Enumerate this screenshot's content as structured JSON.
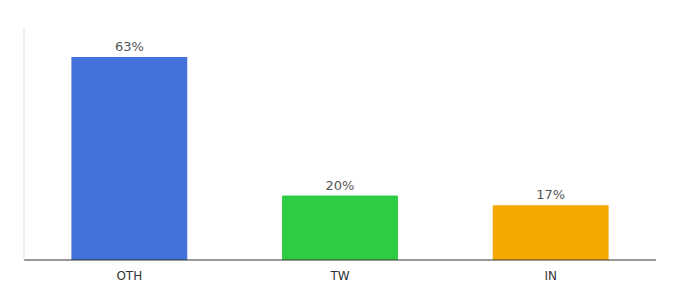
{
  "chart_data": {
    "type": "bar",
    "categories": [
      "OTH",
      "TW",
      "IN"
    ],
    "values": [
      63,
      20,
      17
    ],
    "value_labels": [
      "63%",
      "20%",
      "17%"
    ],
    "colors": [
      "#4472db",
      "#2ecc40",
      "#f5a800"
    ],
    "ylim": [
      0,
      72
    ],
    "grid": false,
    "data_labels": true,
    "tick_labels": "x"
  }
}
